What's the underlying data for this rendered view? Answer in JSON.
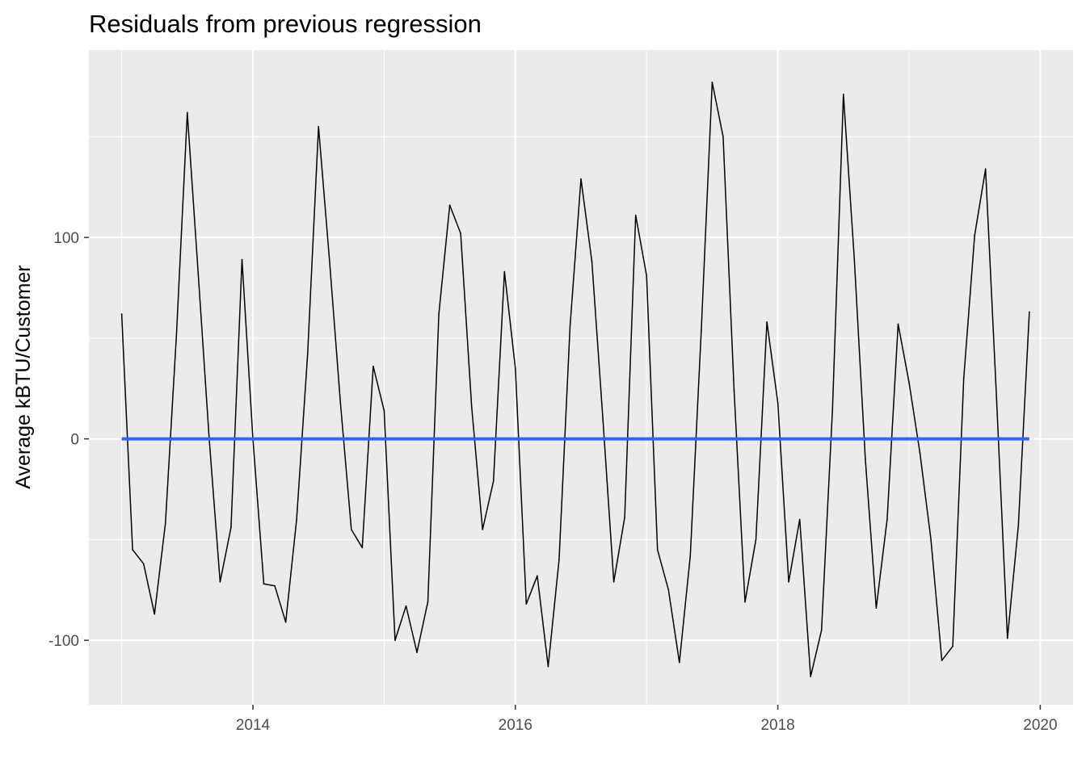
{
  "chart_data": {
    "type": "line",
    "title": "Residuals from previous regression",
    "xlabel": "",
    "ylabel": "Average kBTU/Customer",
    "x_start_year": 2013.0,
    "x_step_years": 0.08333333,
    "xlim": [
      2012.75,
      2020.25
    ],
    "ylim": [
      -132,
      193
    ],
    "x_ticks": [
      2014,
      2016,
      2018,
      2020
    ],
    "x_tick_labels": [
      "2014",
      "2016",
      "2018",
      "2020"
    ],
    "y_ticks": [
      -100,
      0,
      100
    ],
    "y_tick_labels": [
      "-100",
      "0",
      "100"
    ],
    "grid": true,
    "background": "#EBEBEB",
    "series": [
      {
        "color": "#000000",
        "values": [
          62,
          -55,
          -62,
          -87,
          -42,
          51,
          162,
          82,
          0,
          -71,
          -44,
          89,
          0,
          -72,
          -73,
          -91,
          -40,
          42,
          155,
          89,
          18,
          -45,
          -54,
          36,
          14,
          -100,
          -83,
          -106,
          -81,
          62,
          116,
          102,
          16,
          -45,
          -21,
          83,
          35,
          -82,
          -68,
          -113,
          -60,
          56,
          129,
          88,
          10,
          -71,
          -39,
          111,
          81,
          -55,
          -75,
          -111,
          -58,
          54,
          177,
          150,
          24,
          -81,
          -50,
          58,
          18,
          -71,
          -40,
          -118,
          -95,
          15,
          171,
          89,
          -10,
          -84,
          -40,
          57,
          28,
          -7,
          -50,
          -110,
          -103,
          30,
          101,
          134,
          20,
          -99,
          -43,
          63
        ]
      },
      {
        "name": "fit",
        "color": "#3366FF",
        "x": [
          2013.0,
          2019.9167
        ],
        "values": [
          0,
          0
        ]
      }
    ]
  }
}
